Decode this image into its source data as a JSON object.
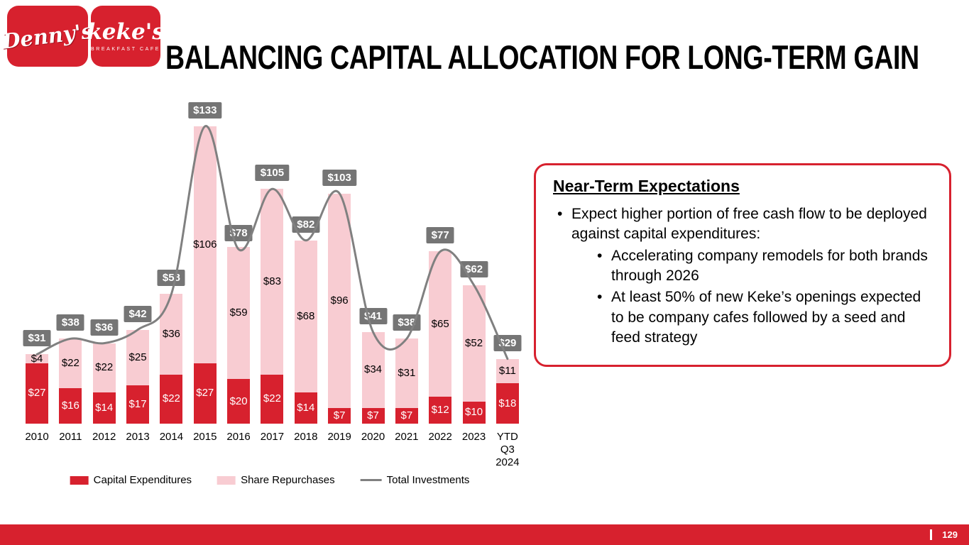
{
  "slide": {
    "title": "BALANCING CAPITAL ALLOCATION FOR LONG-TERM GAIN",
    "page_number": "129"
  },
  "logos": {
    "dennys": "Denny's",
    "kekes": "keke's",
    "kekes_sub": "BREAKFAST CAFE"
  },
  "colors": {
    "capex": "#D7212E",
    "repurchases": "#F8CCD2",
    "line": "#808080",
    "label_box": "#757575",
    "accent_red": "#D7212E"
  },
  "chart_data": {
    "type": "bar",
    "stacked": true,
    "title": "",
    "xlabel": "",
    "ylabel": "",
    "ylim": [
      0,
      140
    ],
    "grid": false,
    "legend_position": "bottom",
    "labels_prefix": "$",
    "categories": [
      "2010",
      "2011",
      "2012",
      "2013",
      "2014",
      "2015",
      "2016",
      "2017",
      "2018",
      "2019",
      "2020",
      "2021",
      "2022",
      "2023",
      "YTD\nQ3\n2024"
    ],
    "series": [
      {
        "name": "Capital Expenditures",
        "values": [
          27,
          16,
          14,
          17,
          22,
          27,
          20,
          22,
          14,
          7,
          7,
          7,
          12,
          10,
          18
        ]
      },
      {
        "name": "Share Repurchases",
        "values": [
          4,
          22,
          22,
          25,
          36,
          106,
          59,
          83,
          68,
          96,
          34,
          31,
          65,
          52,
          11
        ]
      }
    ],
    "line_series": {
      "name": "Total Investments",
      "values": [
        31,
        38,
        36,
        42,
        58,
        133,
        78,
        105,
        82,
        103,
        41,
        38,
        77,
        62,
        29
      ]
    }
  },
  "legend": {
    "items": [
      {
        "label": "Capital Expenditures",
        "swatch": "capex-swatch"
      },
      {
        "label": "Share Repurchases",
        "swatch": "repurchase-swatch"
      },
      {
        "label": "Total Investments",
        "swatch": "line-swatch"
      }
    ]
  },
  "callout": {
    "title": "Near-Term Expectations",
    "bullets": [
      {
        "text": "Expect higher portion of free cash flow to be deployed against capital expenditures:",
        "children": [
          {
            "text": "Accelerating company remodels for both brands through 2026"
          },
          {
            "text": "At least 50% of new Keke’s openings expected to be company cafes followed by a seed and feed strategy"
          }
        ]
      }
    ]
  }
}
